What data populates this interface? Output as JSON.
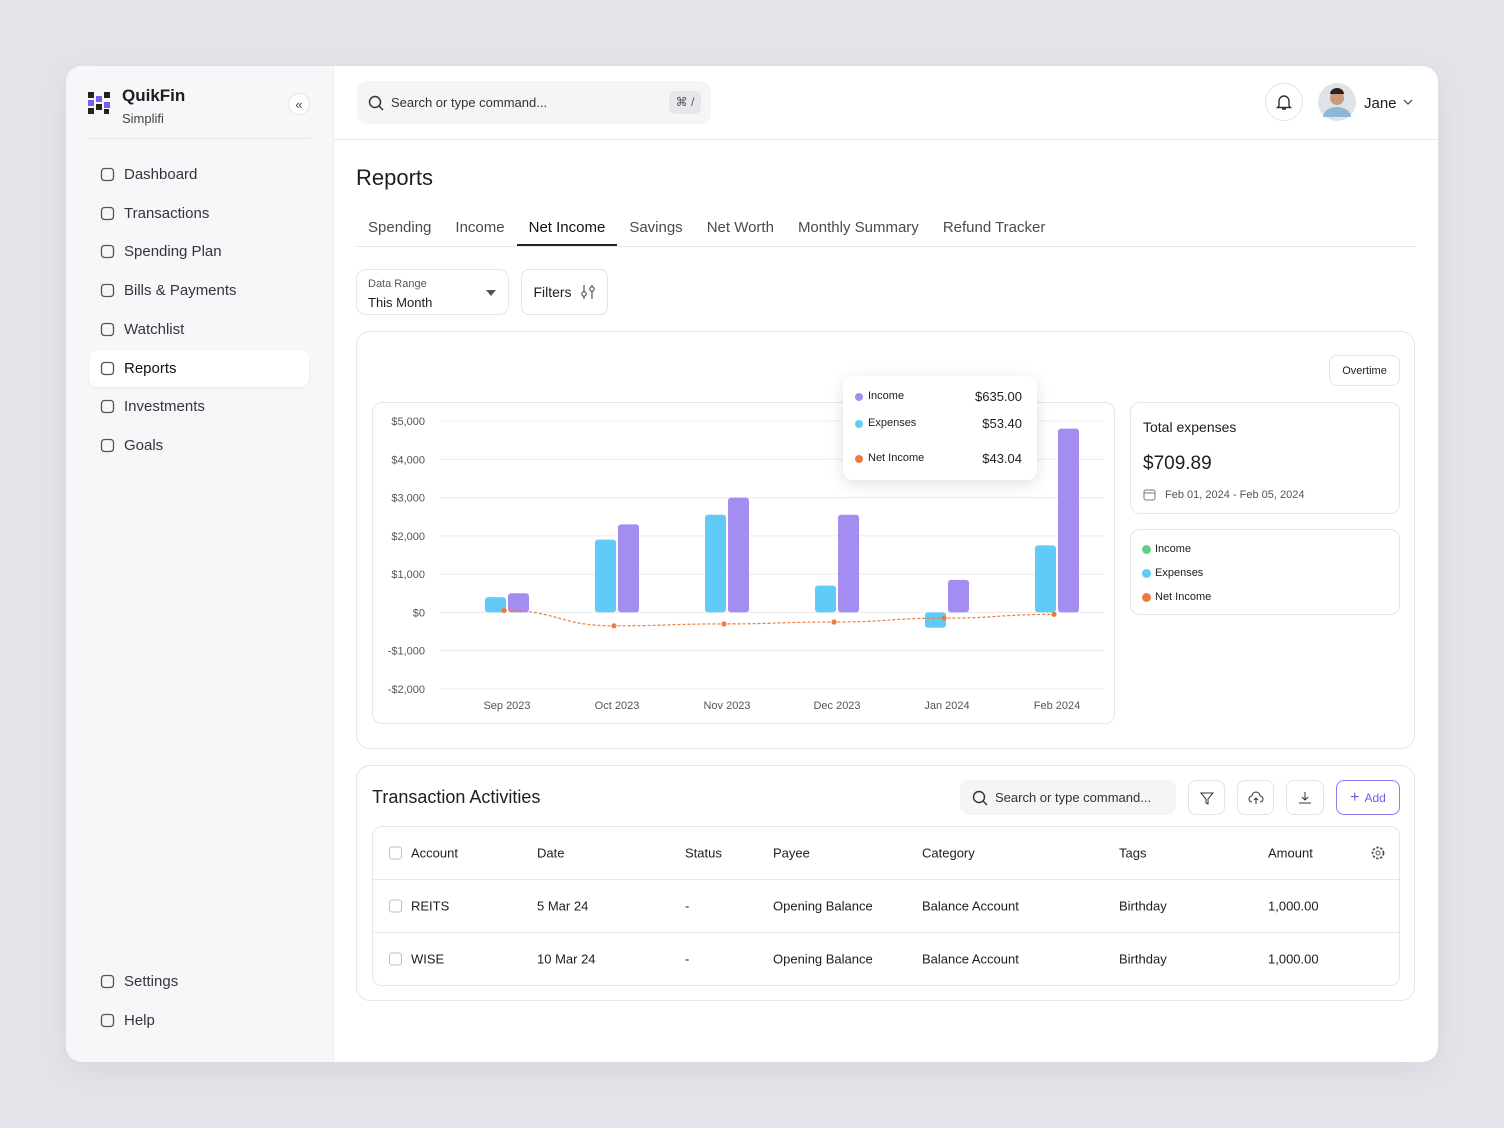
{
  "sidebar": {
    "brand": "QuikFin",
    "subtitle": "Simplifi",
    "nav": [
      "Dashboard",
      "Transactions",
      "Spending Plan",
      "Bills & Payments",
      "Watchlist",
      "Reports",
      "Investments",
      "Goals"
    ],
    "active": 5,
    "footer": [
      "Settings",
      "Help"
    ]
  },
  "topbar": {
    "search": "Search or type command...",
    "shortcut": "⌘ /",
    "user": "Jane"
  },
  "page": {
    "title": "Reports",
    "tabs": [
      "Spending",
      "Income",
      "Net Income",
      "Savings",
      "Net Worth",
      "Monthly Summary",
      "Refund Tracker"
    ],
    "active_tab": 2,
    "range_label": "Data Range",
    "range_value": "This Month",
    "filters": "Filters",
    "mode": "Overtime"
  },
  "chart_data": {
    "type": "bar",
    "categories": [
      "Sep 2023",
      "Oct 2023",
      "Nov 2023",
      "Dec 2023",
      "Jan 2024",
      "Feb 2024"
    ],
    "series": [
      {
        "name": "Expenses",
        "color": "#5fcbf6",
        "values": [
          400,
          1900,
          2550,
          700,
          -400,
          1750
        ]
      },
      {
        "name": "Income",
        "color": "#a38df0",
        "values": [
          500,
          2300,
          3000,
          2550,
          850,
          4800
        ]
      },
      {
        "name": "Net Income",
        "color": "#f07a3c",
        "type": "line",
        "values": [
          50,
          -350,
          -300,
          -250,
          -150,
          -50
        ]
      }
    ],
    "ylim": [
      -2000,
      5000
    ],
    "yticks": [
      {
        "value": 5000,
        "label": "$5,000"
      },
      {
        "value": 4000,
        "label": "$4,000"
      },
      {
        "value": 3000,
        "label": "$3,000"
      },
      {
        "value": 2000,
        "label": "$2,000"
      },
      {
        "value": 1000,
        "label": "$1,000"
      },
      {
        "value": 0,
        "label": "$0"
      },
      {
        "value": -1000,
        "label": "-$1,000"
      },
      {
        "value": -2000,
        "label": "-$2,000"
      }
    ],
    "grid": true
  },
  "tooltip": {
    "rows": [
      {
        "label": "Income",
        "value": "$635.00",
        "color": "#a38df0"
      },
      {
        "label": "Expenses",
        "value": "$53.40",
        "color": "#5fcbf6"
      },
      {
        "label": "Net Income",
        "value": "$43.04",
        "color": "#f07a3c"
      }
    ]
  },
  "summary": {
    "title": "Total expenses",
    "amount": "$709.89",
    "dates": "Feb 01, 2024 - Feb 05, 2024",
    "legend": [
      {
        "name": "Income",
        "color": "#5fd08a"
      },
      {
        "name": "Expenses",
        "color": "#5fcbf6"
      },
      {
        "name": "Net Income",
        "color": "#f07a3c"
      }
    ]
  },
  "transactions": {
    "title": "Transaction Activities",
    "search": "Search or type command...",
    "add": "Add",
    "columns": [
      "Account",
      "Date",
      "Status",
      "Payee",
      "Category",
      "Tags",
      "Amount"
    ],
    "rows": [
      [
        "REITS",
        "5 Mar 24",
        "-",
        "Opening Balance",
        "Balance Account",
        "Birthday",
        "1,000.00"
      ],
      [
        "WISE",
        "10 Mar 24",
        "-",
        "Opening Balance",
        "Balance Account",
        "Birthday",
        "1,000.00"
      ]
    ]
  }
}
